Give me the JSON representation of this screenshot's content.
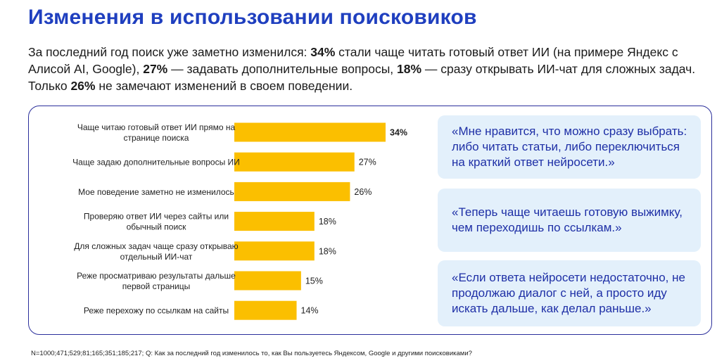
{
  "title": "Изменения в использовании поисковиков",
  "intro": {
    "p1": "За последний год поиск уже заметно изменился: ",
    "v1": "34%",
    "p2": " стали чаще читать готовый ответ ИИ (на примере Яндекс с Алисой AI, Google), ",
    "v2": "27%",
    "p3": " — задавать дополнительные вопросы, ",
    "v3": "18%",
    "p4": " — сразу открывать ИИ-чат для сложных задач. Только ",
    "v4": "26%",
    "p5": " не замечают изменений в своем поведении."
  },
  "chart_data": {
    "type": "bar",
    "orientation": "horizontal",
    "categories": [
      [
        "Чаще читаю готовый ответ ИИ прямо на",
        "странице поиска"
      ],
      [
        "Чаще задаю дополнительные вопросы ИИ"
      ],
      [
        "Мое поведение заметно не изменилось"
      ],
      [
        "Проверяю ответ ИИ через сайты или",
        "обычный поиск"
      ],
      [
        "Для сложных задач чаще сразу открываю",
        "отдельный ИИ-чат"
      ],
      [
        "Реже просматриваю результаты дальше",
        "первой страницы"
      ],
      [
        "Реже перехожу по ссылкам на сайты"
      ]
    ],
    "values": [
      34,
      27,
      26,
      18,
      18,
      15,
      14
    ],
    "value_labels": [
      "34%",
      "27%",
      "26%",
      "18%",
      "18%",
      "15%",
      "14%"
    ],
    "bold_value_index": 0,
    "xlim": [
      0,
      34
    ],
    "bar_color": "#fbbf00",
    "grid": false,
    "legend": "none"
  },
  "quotes": [
    "«Мне нравится, что можно сразу выбрать: либо читать статьи, либо переключиться на краткий ответ нейросети.»",
    "«Теперь чаще читаешь готовую выжимку, чем переходишь по ссылкам.»",
    "«Если ответа нейросети недостаточно, не продолжаю диалог с ней, а просто иду искать дальше, как делал раньше.»"
  ],
  "footnote": "N=1000;471;529;81;165;351;185;217; Q: Как за последний год изменилось то, как Вы пользуетесь Яндексом, Google и другими поисковиками?"
}
